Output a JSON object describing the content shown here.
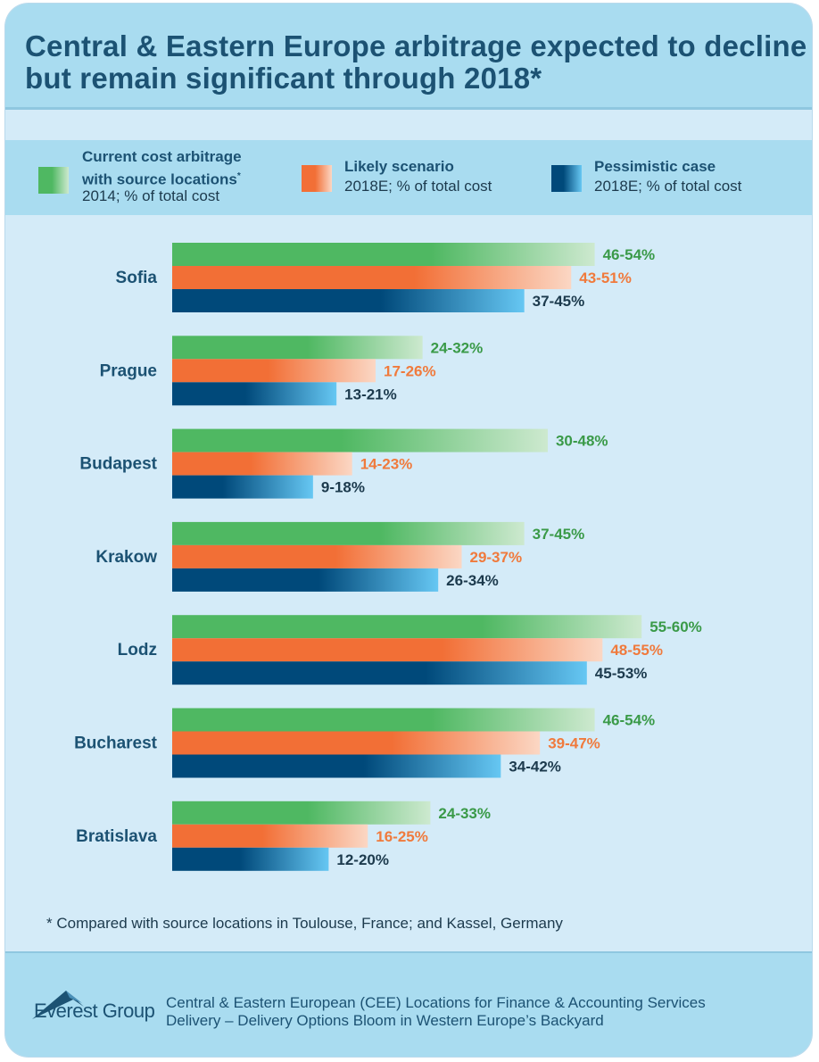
{
  "title": "Central & Eastern Europe arbitrage expected to decline but remain significant through 2018*",
  "legend": [
    {
      "line1": "Current cost arbitrage",
      "line2": "with source locations",
      "marker": "*",
      "sub": "2014; % of total cost"
    },
    {
      "line1": "Likely scenario",
      "sub": "2018E; % of total cost"
    },
    {
      "line1": "Pessimistic case",
      "sub": "2018E; % of total cost"
    }
  ],
  "colors": {
    "green": "#4fb862",
    "green_light": "#cde9cf",
    "orange": "#f26f36",
    "orange_light": "#fbd7c4",
    "navy": "#00497a",
    "sky": "#66c7f3",
    "green_text": "#3a9a48",
    "orange_text": "#f07a3c",
    "navy_text": "#1c3a4d",
    "city_text": "#1c5273"
  },
  "chart_data": {
    "type": "bar",
    "orientation": "horizontal",
    "unit": "% of total cost",
    "categories": [
      "Sofia",
      "Prague",
      "Budapest",
      "Krakow",
      "Lodz",
      "Bucharest",
      "Bratislava"
    ],
    "series": [
      {
        "name": "Current cost arbitrage with source locations (2014)",
        "color": "green",
        "ranges": [
          [
            46,
            54
          ],
          [
            24,
            32
          ],
          [
            30,
            48
          ],
          [
            37,
            45
          ],
          [
            55,
            60
          ],
          [
            46,
            54
          ],
          [
            24,
            33
          ]
        ],
        "labels": [
          "46-54%",
          "24-32%",
          "30-48%",
          "37-45%",
          "55-60%",
          "46-54%",
          "24-33%"
        ]
      },
      {
        "name": "Likely scenario (2018E)",
        "color": "orange",
        "ranges": [
          [
            43,
            51
          ],
          [
            17,
            26
          ],
          [
            14,
            23
          ],
          [
            29,
            37
          ],
          [
            48,
            55
          ],
          [
            39,
            47
          ],
          [
            16,
            25
          ]
        ],
        "labels": [
          "43-51%",
          "17-26%",
          "14-23%",
          "29-37%",
          "48-55%",
          "39-47%",
          "16-25%"
        ]
      },
      {
        "name": "Pessimistic case (2018E)",
        "color": "navy",
        "ranges": [
          [
            37,
            45
          ],
          [
            13,
            21
          ],
          [
            9,
            18
          ],
          [
            26,
            34
          ],
          [
            45,
            53
          ],
          [
            34,
            42
          ],
          [
            12,
            20
          ]
        ],
        "labels": [
          "37-45%",
          "13-21%",
          "9-18%",
          "26-34%",
          "45-53%",
          "34-42%",
          "12-20%"
        ]
      }
    ],
    "xlim": [
      0,
      60
    ]
  },
  "footnote": "* Compared with source locations in Toulouse, France; and Kassel, Germany",
  "footer": {
    "logo_text": "Everest Group",
    "source_line1": "Central & Eastern European (CEE) Locations for Finance & Accounting Services",
    "source_line2": "Delivery – Delivery Options Bloom in Western Europe’s Backyard"
  }
}
